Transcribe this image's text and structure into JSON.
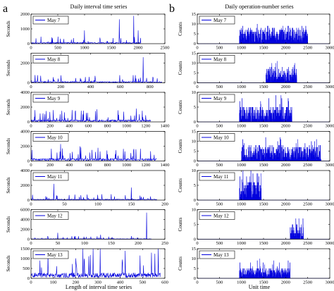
{
  "panels": [
    {
      "letter": "a",
      "title": "Daily interval time series",
      "xlabel": "Length of interval time series",
      "ylabel": "Seconds"
    },
    {
      "letter": "b",
      "title": "Daily operation-number series",
      "xlabel": "Unit time",
      "ylabel": "Counts"
    }
  ],
  "colors": {
    "series": "#0000dd",
    "axis": "#000000",
    "legend_line": "#0000dd"
  },
  "chart_data": [
    {
      "type": "line",
      "panel": "a",
      "series": [
        {
          "name": "May 7"
        }
      ],
      "xlim": [
        0,
        2500
      ],
      "ylim": [
        0,
        2000
      ],
      "xticks": [
        0,
        500,
        1000,
        1500,
        2000,
        2500
      ],
      "yticks": [
        0,
        1000,
        2000
      ],
      "x_end": 2050,
      "baseline": 60,
      "bursts": [
        {
          "x": 1000,
          "value": 900
        },
        {
          "x": 1650,
          "value": 1650
        },
        {
          "x": 1920,
          "value": 1880
        },
        {
          "x": 2000,
          "value": 900
        }
      ]
    },
    {
      "type": "line",
      "panel": "a",
      "series": [
        {
          "name": "May 8"
        }
      ],
      "xlim": [
        0,
        900
      ],
      "ylim": [
        0,
        3000
      ],
      "xticks": [
        0,
        200,
        400,
        600,
        800
      ],
      "yticks": [
        0,
        2000
      ],
      "x_end": 880,
      "baseline": 100,
      "bursts": [
        {
          "x": 430,
          "value": 700
        },
        {
          "x": 755,
          "value": 2600
        },
        {
          "x": 820,
          "value": 600
        }
      ]
    },
    {
      "type": "line",
      "panel": "a",
      "series": [
        {
          "name": "May 9"
        }
      ],
      "xlim": [
        0,
        1400
      ],
      "ylim": [
        0,
        4000
      ],
      "xticks": [
        0,
        200,
        400,
        600,
        800,
        1000,
        1200,
        1400
      ],
      "yticks": [
        0,
        2000,
        4000
      ],
      "x_end": 1250,
      "baseline": 200,
      "bursts": [
        {
          "x": 690,
          "value": 1700
        },
        {
          "x": 1100,
          "value": 1800
        },
        {
          "x": 1200,
          "value": 900
        }
      ]
    },
    {
      "type": "line",
      "panel": "a",
      "series": [
        {
          "name": "May 10"
        }
      ],
      "xlim": [
        0,
        1400
      ],
      "ylim": [
        0,
        4000
      ],
      "xticks": [
        0,
        200,
        400,
        600,
        800,
        1000,
        1200,
        1400
      ],
      "yticks": [
        0,
        2000,
        4000
      ],
      "x_end": 1310,
      "baseline": 250,
      "bursts": [
        {
          "x": 10,
          "value": 1500
        },
        {
          "x": 310,
          "value": 2300
        },
        {
          "x": 800,
          "value": 900
        }
      ]
    },
    {
      "type": "line",
      "panel": "a",
      "series": [
        {
          "name": "May 11"
        }
      ],
      "xlim": [
        0,
        200
      ],
      "ylim": [
        0,
        4000
      ],
      "xticks": [
        0,
        50,
        100,
        150,
        200
      ],
      "yticks": [
        0,
        2000,
        4000
      ],
      "x_end": 188,
      "baseline": 100,
      "bursts": [
        {
          "x": 34,
          "value": 2200
        },
        {
          "x": 120,
          "value": 800
        },
        {
          "x": 150,
          "value": 1700
        }
      ]
    },
    {
      "type": "line",
      "panel": "a",
      "series": [
        {
          "name": "May 12"
        }
      ],
      "xlim": [
        0,
        250
      ],
      "ylim": [
        0,
        6000
      ],
      "xticks": [
        0,
        50,
        100,
        150,
        200,
        250
      ],
      "yticks": [
        0,
        2000,
        4000,
        6000
      ],
      "x_end": 225,
      "baseline": 80,
      "bursts": [
        {
          "x": 50,
          "value": 1300
        },
        {
          "x": 130,
          "value": 900
        },
        {
          "x": 216,
          "value": 5400
        }
      ]
    },
    {
      "type": "line",
      "panel": "a",
      "series": [
        {
          "name": "May 13"
        }
      ],
      "xlim": [
        0,
        600
      ],
      "ylim": [
        0,
        1500
      ],
      "xticks": [
        0,
        100,
        200,
        300,
        400,
        500,
        600
      ],
      "yticks": [
        0,
        500,
        1000,
        1500
      ],
      "x_end": 580,
      "baseline": 200,
      "bursts": [
        {
          "x": 40,
          "value": 900
        },
        {
          "x": 240,
          "value": 1000
        },
        {
          "x": 540,
          "value": 1300
        },
        {
          "x": 570,
          "value": 1500
        }
      ]
    },
    {
      "type": "line",
      "panel": "b",
      "series": [
        {
          "name": "May 7"
        }
      ],
      "xlim": [
        0,
        3000
      ],
      "ylim": [
        0,
        15
      ],
      "xticks": [
        0,
        500,
        1000,
        1500,
        2000,
        2500,
        3000
      ],
      "yticks": [
        0,
        5,
        10,
        15
      ],
      "active": [
        950,
        2500
      ],
      "typical": 6,
      "peak": 10
    },
    {
      "type": "line",
      "panel": "b",
      "series": [
        {
          "name": "May 8"
        }
      ],
      "xlim": [
        0,
        3000
      ],
      "ylim": [
        0,
        15
      ],
      "xticks": [
        0,
        500,
        1000,
        1500,
        2000,
        2500,
        3000
      ],
      "yticks": [
        0,
        5,
        10,
        15
      ],
      "active": [
        1550,
        2250
      ],
      "typical": 6,
      "peak": 12
    },
    {
      "type": "line",
      "panel": "b",
      "series": [
        {
          "name": "May 9"
        }
      ],
      "xlim": [
        0,
        3000
      ],
      "ylim": [
        0,
        10
      ],
      "xticks": [
        0,
        500,
        1000,
        1500,
        2000,
        2500,
        3000
      ],
      "yticks": [
        0,
        5,
        10
      ],
      "active": [
        950,
        2150
      ],
      "typical": 4,
      "peak": 10
    },
    {
      "type": "line",
      "panel": "b",
      "series": [
        {
          "name": "May 10"
        }
      ],
      "xlim": [
        0,
        3000
      ],
      "ylim": [
        0,
        15
      ],
      "xticks": [
        0,
        500,
        1000,
        1500,
        2000,
        2500,
        3000
      ],
      "yticks": [
        0,
        5,
        10,
        15
      ],
      "active": [
        1000,
        2800
      ],
      "typical": 6,
      "peak": 12
    },
    {
      "type": "line",
      "panel": "b",
      "series": [
        {
          "name": "May 11"
        }
      ],
      "xlim": [
        0,
        3000
      ],
      "ylim": [
        0,
        10
      ],
      "xticks": [
        0,
        500,
        1000,
        1500,
        2000,
        2500,
        3000
      ],
      "yticks": [
        0,
        5,
        10
      ],
      "active": [
        950,
        1450
      ],
      "typical": 5,
      "peak": 10
    },
    {
      "type": "line",
      "panel": "b",
      "series": [
        {
          "name": "May 12"
        }
      ],
      "xlim": [
        0,
        3000
      ],
      "ylim": [
        0,
        10
      ],
      "xticks": [
        0,
        500,
        1000,
        1500,
        2000,
        2500,
        3000
      ],
      "yticks": [
        0,
        5,
        10
      ],
      "active": [
        2100,
        2400
      ],
      "typical": 4,
      "peak": 7
    },
    {
      "type": "line",
      "panel": "b",
      "series": [
        {
          "name": "May 13"
        }
      ],
      "xlim": [
        0,
        3000
      ],
      "ylim": [
        0,
        15
      ],
      "xticks": [
        0,
        500,
        1000,
        1500,
        2000,
        2500,
        3000
      ],
      "yticks": [
        0,
        5,
        10,
        15
      ],
      "active": [
        950,
        2100
      ],
      "typical": 4,
      "peak": 10
    }
  ]
}
